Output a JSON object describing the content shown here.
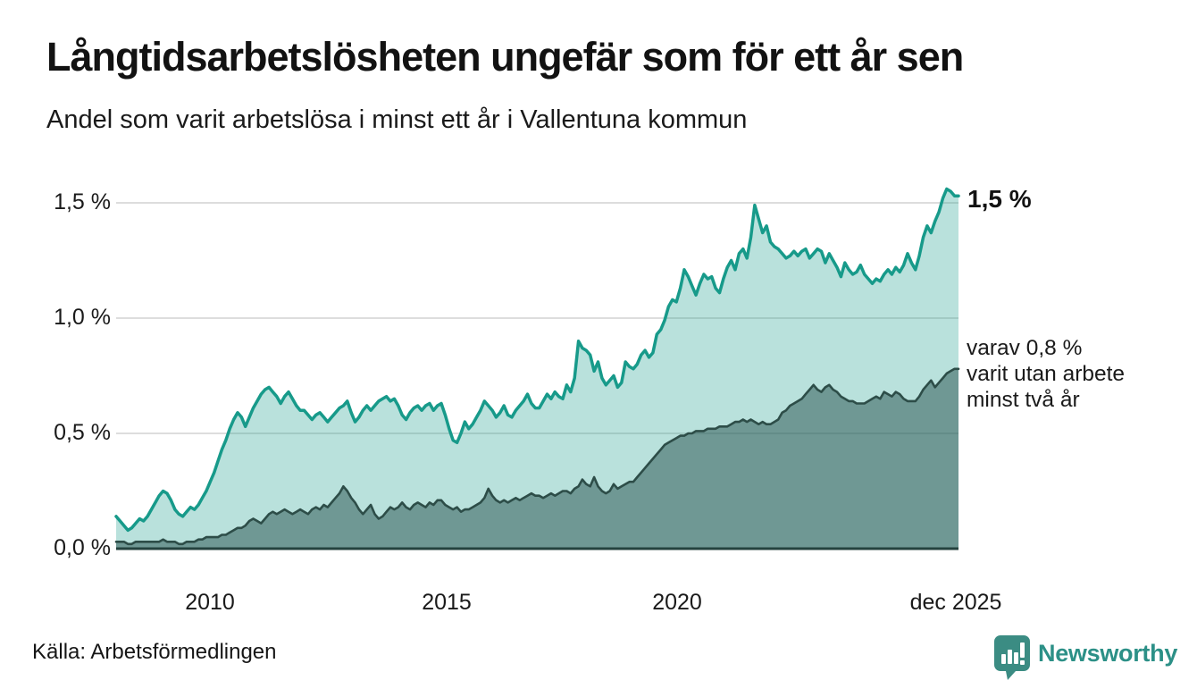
{
  "header": {
    "title": "Långtidsarbetslösheten ungefär som för ett år sen",
    "subtitle": "Andel som varit arbetslösa i minst ett år i Vallentuna kommun"
  },
  "annotations": {
    "latest_total": "1,5 %",
    "secondary_line1": "varav 0,8 %",
    "secondary_line2": "varit utan arbete",
    "secondary_line3": "minst två år"
  },
  "source": "Källa: Arbetsförmedlingen",
  "brand": {
    "name": "Newsworthy",
    "color": "#2c9087",
    "logo_icon": "bar-chart-speech-bubble-icon",
    "logo_fill": "#3b8c83"
  },
  "chart_data": {
    "type": "area",
    "title": "Långtidsarbetslösheten ungefär som för ett år sen",
    "subtitle": "Andel som varit arbetslösa i minst ett år i Vallentuna kommun",
    "unit": "%",
    "frequency": "monthly",
    "x_start": "2008-01",
    "x_end": "2025-12",
    "ylim": [
      0,
      1.62
    ],
    "grid": "horizontal",
    "gridline_values": [
      0.5,
      1.0,
      1.5
    ],
    "gridline_color": "#d8d8d8",
    "baseline_color": "#24423e",
    "y_tick_labels": [
      "1,5 %",
      "1,0 %",
      "0,5 %",
      "0,0 %"
    ],
    "x_tick_labels": [
      "2010",
      "2015",
      "2020",
      "dec 2025"
    ],
    "x_tick_years": [
      2010,
      2015,
      2020,
      2025.92
    ],
    "series": [
      {
        "name": "Andel arbetslösa minst ett år",
        "latest_value": 1.5,
        "color": "#179a8a",
        "fill": "rgba(23,154,138,0.30)",
        "stroke_width": 3.5,
        "values": [
          0.14,
          0.12,
          0.1,
          0.08,
          0.09,
          0.11,
          0.13,
          0.12,
          0.14,
          0.17,
          0.2,
          0.23,
          0.25,
          0.24,
          0.21,
          0.17,
          0.15,
          0.14,
          0.16,
          0.18,
          0.17,
          0.19,
          0.22,
          0.25,
          0.29,
          0.33,
          0.38,
          0.43,
          0.47,
          0.52,
          0.56,
          0.59,
          0.57,
          0.53,
          0.57,
          0.61,
          0.64,
          0.67,
          0.69,
          0.7,
          0.68,
          0.66,
          0.63,
          0.66,
          0.68,
          0.65,
          0.62,
          0.6,
          0.6,
          0.58,
          0.56,
          0.58,
          0.59,
          0.57,
          0.55,
          0.57,
          0.59,
          0.61,
          0.62,
          0.64,
          0.59,
          0.55,
          0.57,
          0.6,
          0.62,
          0.6,
          0.62,
          0.64,
          0.65,
          0.66,
          0.64,
          0.65,
          0.62,
          0.58,
          0.56,
          0.59,
          0.61,
          0.62,
          0.6,
          0.62,
          0.63,
          0.6,
          0.62,
          0.63,
          0.58,
          0.52,
          0.47,
          0.46,
          0.5,
          0.55,
          0.52,
          0.54,
          0.57,
          0.6,
          0.64,
          0.62,
          0.6,
          0.57,
          0.59,
          0.62,
          0.58,
          0.57,
          0.6,
          0.62,
          0.64,
          0.67,
          0.63,
          0.61,
          0.61,
          0.64,
          0.67,
          0.65,
          0.68,
          0.66,
          0.65,
          0.71,
          0.68,
          0.74,
          0.9,
          0.87,
          0.86,
          0.84,
          0.77,
          0.81,
          0.74,
          0.71,
          0.73,
          0.75,
          0.7,
          0.72,
          0.81,
          0.79,
          0.78,
          0.8,
          0.84,
          0.86,
          0.83,
          0.85,
          0.93,
          0.95,
          0.99,
          1.05,
          1.08,
          1.07,
          1.13,
          1.21,
          1.18,
          1.14,
          1.1,
          1.15,
          1.19,
          1.17,
          1.18,
          1.13,
          1.11,
          1.17,
          1.22,
          1.25,
          1.21,
          1.28,
          1.3,
          1.26,
          1.35,
          1.49,
          1.43,
          1.37,
          1.4,
          1.33,
          1.31,
          1.3,
          1.28,
          1.26,
          1.27,
          1.29,
          1.27,
          1.29,
          1.3,
          1.26,
          1.28,
          1.3,
          1.29,
          1.24,
          1.28,
          1.25,
          1.22,
          1.18,
          1.24,
          1.21,
          1.19,
          1.2,
          1.23,
          1.19,
          1.17,
          1.15,
          1.17,
          1.16,
          1.19,
          1.21,
          1.19,
          1.22,
          1.2,
          1.23,
          1.28,
          1.24,
          1.21,
          1.27,
          1.35,
          1.4,
          1.37,
          1.42,
          1.46,
          1.52,
          1.56,
          1.55,
          1.53,
          1.53
        ]
      },
      {
        "name": "varav utan arbete minst två år",
        "latest_value": 0.8,
        "color": "#2d4d48",
        "fill": "rgba(31,74,68,0.48)",
        "stroke_width": 2.6,
        "values": [
          0.03,
          0.03,
          0.03,
          0.02,
          0.02,
          0.03,
          0.03,
          0.03,
          0.03,
          0.03,
          0.03,
          0.03,
          0.04,
          0.03,
          0.03,
          0.03,
          0.02,
          0.02,
          0.03,
          0.03,
          0.03,
          0.04,
          0.04,
          0.05,
          0.05,
          0.05,
          0.05,
          0.06,
          0.06,
          0.07,
          0.08,
          0.09,
          0.09,
          0.1,
          0.12,
          0.13,
          0.12,
          0.11,
          0.13,
          0.15,
          0.16,
          0.15,
          0.16,
          0.17,
          0.16,
          0.15,
          0.16,
          0.17,
          0.16,
          0.15,
          0.17,
          0.18,
          0.17,
          0.19,
          0.18,
          0.2,
          0.22,
          0.24,
          0.27,
          0.25,
          0.22,
          0.2,
          0.17,
          0.15,
          0.17,
          0.19,
          0.15,
          0.13,
          0.14,
          0.16,
          0.18,
          0.17,
          0.18,
          0.2,
          0.18,
          0.17,
          0.19,
          0.2,
          0.19,
          0.18,
          0.2,
          0.19,
          0.21,
          0.21,
          0.19,
          0.18,
          0.17,
          0.18,
          0.16,
          0.17,
          0.17,
          0.18,
          0.19,
          0.2,
          0.22,
          0.26,
          0.23,
          0.21,
          0.2,
          0.21,
          0.2,
          0.21,
          0.22,
          0.21,
          0.22,
          0.23,
          0.24,
          0.23,
          0.23,
          0.22,
          0.23,
          0.24,
          0.23,
          0.24,
          0.25,
          0.25,
          0.24,
          0.26,
          0.27,
          0.3,
          0.28,
          0.27,
          0.31,
          0.27,
          0.25,
          0.24,
          0.25,
          0.28,
          0.26,
          0.27,
          0.28,
          0.29,
          0.29,
          0.31,
          0.33,
          0.35,
          0.37,
          0.39,
          0.41,
          0.43,
          0.45,
          0.46,
          0.47,
          0.48,
          0.49,
          0.49,
          0.5,
          0.5,
          0.51,
          0.51,
          0.51,
          0.52,
          0.52,
          0.52,
          0.53,
          0.53,
          0.53,
          0.54,
          0.55,
          0.55,
          0.56,
          0.55,
          0.56,
          0.55,
          0.54,
          0.55,
          0.54,
          0.54,
          0.55,
          0.56,
          0.59,
          0.6,
          0.62,
          0.63,
          0.64,
          0.65,
          0.67,
          0.69,
          0.71,
          0.69,
          0.68,
          0.7,
          0.71,
          0.69,
          0.68,
          0.66,
          0.65,
          0.64,
          0.64,
          0.63,
          0.63,
          0.63,
          0.64,
          0.65,
          0.66,
          0.65,
          0.68,
          0.67,
          0.66,
          0.68,
          0.67,
          0.65,
          0.64,
          0.64,
          0.64,
          0.66,
          0.69,
          0.71,
          0.73,
          0.7,
          0.72,
          0.74,
          0.76,
          0.77,
          0.78,
          0.78
        ]
      }
    ]
  }
}
